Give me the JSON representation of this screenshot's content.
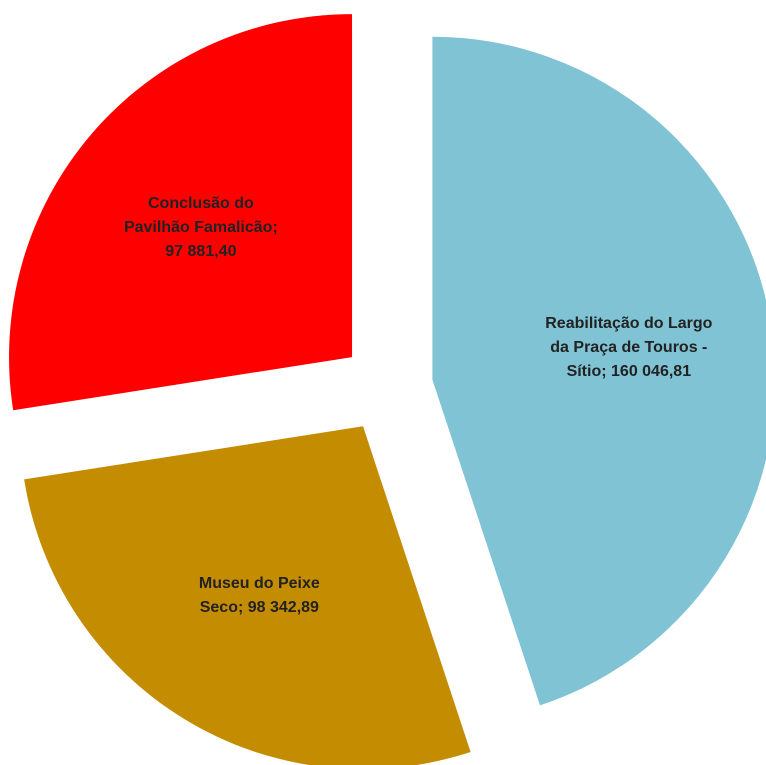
{
  "chart_data": {
    "type": "pie",
    "categories": [
      "Reabilitação do Largo da Praça de Touros - Sítio",
      "Museu do Peixe Seco",
      "Conclusão do Pavilhão Famalicão"
    ],
    "values": [
      160046.81,
      98342.89,
      97881.4
    ],
    "value_labels": [
      "160 046,81",
      "98 342,89",
      "97 881,40"
    ],
    "label_separator": "; ",
    "colors": [
      "#7fc3d5",
      "#c48c00",
      "#ff0000"
    ]
  }
}
